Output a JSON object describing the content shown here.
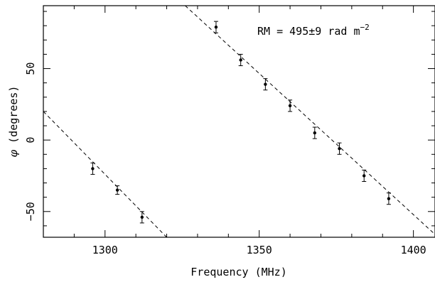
{
  "chart_data": {
    "type": "scatter",
    "xlabel": "Frequency (MHz)",
    "ylabel_symbol": "φ",
    "ylabel_rest": " (degrees)",
    "xlim": [
      1280,
      1407
    ],
    "ylim": [
      -68,
      94
    ],
    "x_major_ticks": [
      1300,
      1350,
      1400
    ],
    "x_major_tick_labels": [
      "1300",
      "1350",
      "1400"
    ],
    "x_minor_step": 10,
    "y_major_ticks": [
      -50,
      0,
      50
    ],
    "y_major_tick_labels": [
      "−50",
      "0",
      "50"
    ],
    "y_minor_step": 10,
    "annotation": {
      "prefix": "RM = 495±9 rad m",
      "superscript": "−2"
    },
    "series": [
      {
        "points": [
          {
            "x": 1296,
            "y": -20,
            "err": 4
          },
          {
            "x": 1304,
            "y": -35,
            "err": 3
          },
          {
            "x": 1312,
            "y": -54,
            "err": 4
          },
          {
            "x": 1336,
            "y": 79,
            "err": 4
          },
          {
            "x": 1344,
            "y": 56,
            "err": 4
          },
          {
            "x": 1352,
            "y": 39,
            "err": 4
          },
          {
            "x": 1360,
            "y": 24,
            "err": 4
          },
          {
            "x": 1368,
            "y": 5,
            "err": 4
          },
          {
            "x": 1376,
            "y": -6,
            "err": 4
          },
          {
            "x": 1384,
            "y": -25,
            "err": 4
          },
          {
            "x": 1392,
            "y": -41,
            "err": 4
          }
        ]
      }
    ],
    "fit_lines": [
      {
        "from": [
          1280,
          20
        ],
        "to": [
          1320,
          -68
        ]
      },
      {
        "from": [
          1326,
          94
        ],
        "to": [
          1407,
          -66
        ]
      }
    ]
  }
}
